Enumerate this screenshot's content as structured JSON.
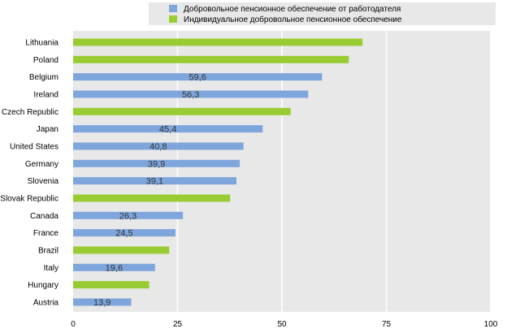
{
  "chart_data": {
    "type": "bar",
    "orientation": "horizontal",
    "xlim": [
      0,
      100
    ],
    "x_ticks": [
      0,
      25,
      50,
      75,
      100
    ],
    "grid": true,
    "legend_position": "top",
    "legend": [
      {
        "name": "Добровольное пенсионное обеспечение от работодателя",
        "color": "#7ea6dc"
      },
      {
        "name": "Индивидуальное добровольное пенсионное обеспечение",
        "color": "#99cc33"
      }
    ],
    "categories": [
      "Lithuania",
      "Poland",
      "Belgium",
      "Ireland",
      "Czech Republic",
      "Japan",
      "United States",
      "Germany",
      "Slovenia",
      "Slovak Republic",
      "Canada",
      "France",
      "Brazil",
      "Italy",
      "Hungary",
      "Austria"
    ],
    "values": [
      69.3,
      66.0,
      59.6,
      56.3,
      52.1,
      45.4,
      40.8,
      39.9,
      39.1,
      37.6,
      26.3,
      24.5,
      23.0,
      19.6,
      18.2,
      13.9
    ],
    "series_index": [
      1,
      1,
      0,
      0,
      1,
      0,
      0,
      0,
      0,
      1,
      0,
      0,
      1,
      0,
      1,
      0
    ],
    "value_labels": [
      "",
      "",
      "59,6",
      "56,3",
      "",
      "45,4",
      "40,8",
      "39,9",
      "39,1",
      "",
      "26,3",
      "24,5",
      "",
      "19,6",
      "",
      "13,9"
    ]
  }
}
